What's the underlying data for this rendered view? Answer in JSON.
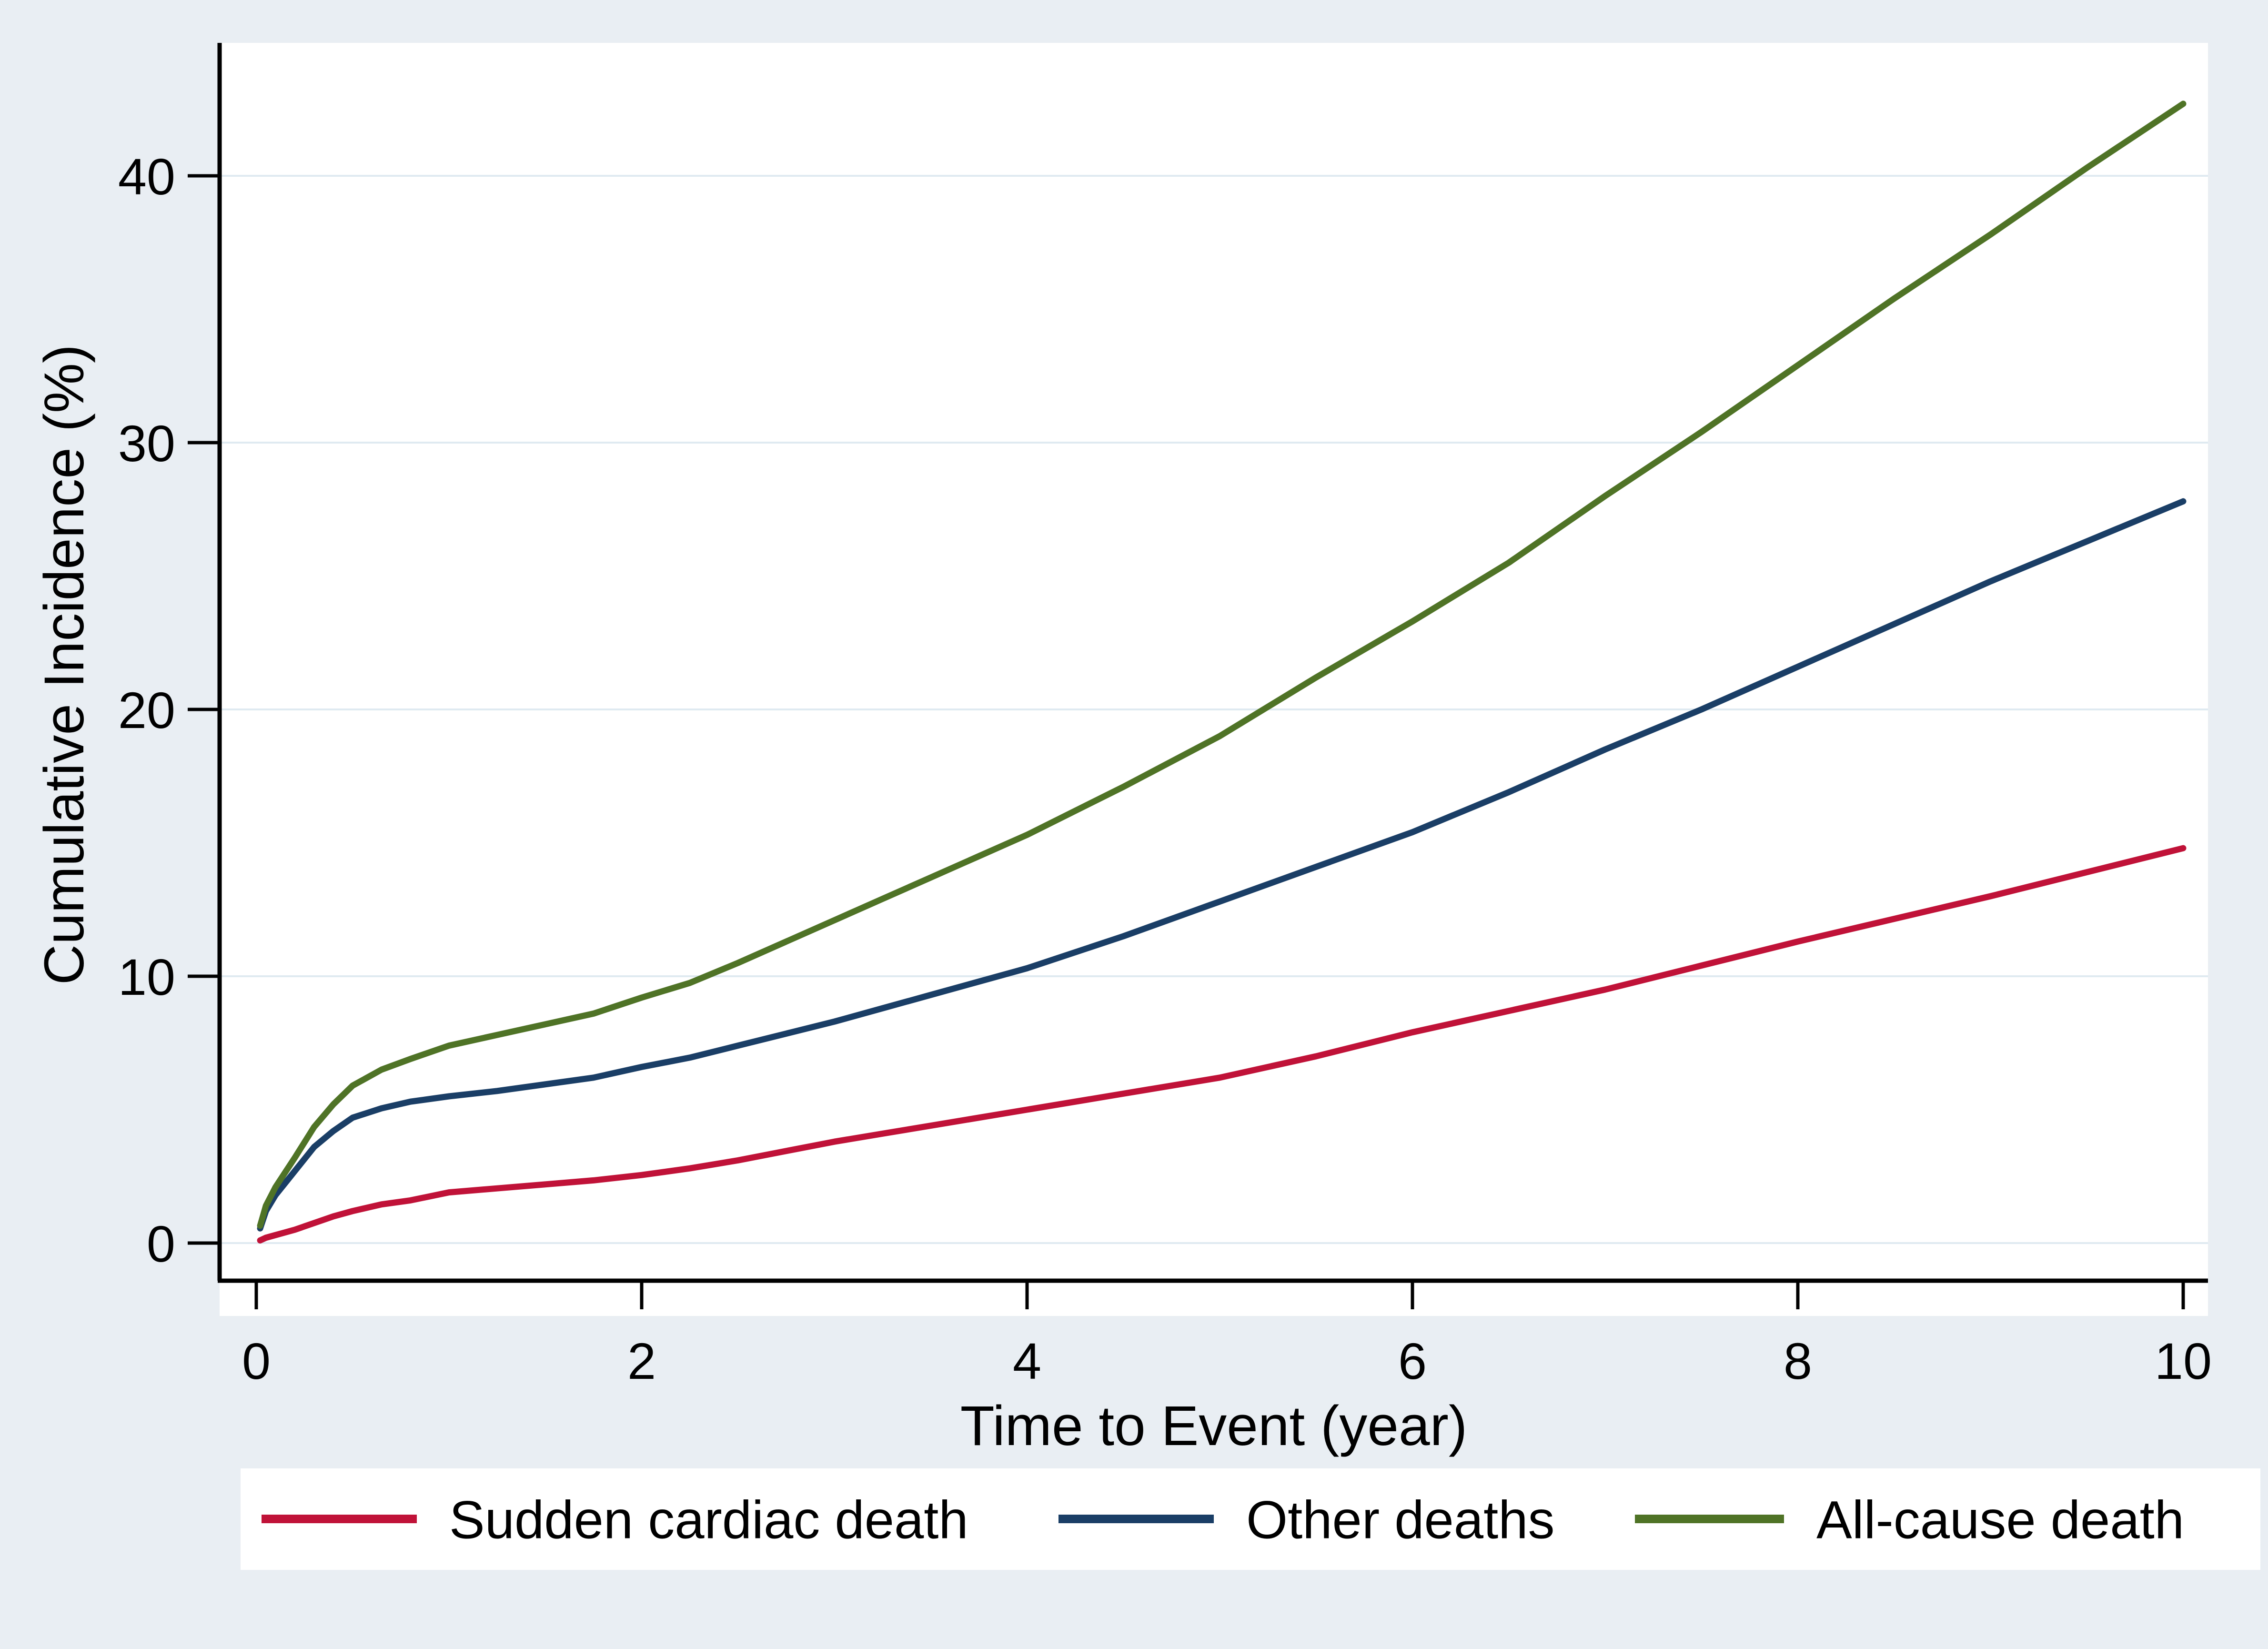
{
  "page": {
    "background_color": "#e9eef3",
    "plot_background_color": "#ffffff",
    "gridline_color": "#dfeaf1",
    "axis_color": "#000000",
    "legend_background_color": "#ffffff"
  },
  "chart_data": {
    "type": "line",
    "title": "",
    "xlabel": "Time to Event (year)",
    "ylabel": "Cumulative Incidence (%)",
    "xlim": [
      0,
      10.13
    ],
    "ylim": [
      0,
      45
    ],
    "x_ticks": [
      0,
      2,
      4,
      6,
      8,
      10
    ],
    "y_ticks": [
      0,
      10,
      20,
      30,
      40
    ],
    "grid": true,
    "legend_position": "bottom",
    "curve_style": "cumulative-incidence step curves",
    "x": [
      0.02,
      0.05,
      0.1,
      0.15,
      0.2,
      0.3,
      0.4,
      0.5,
      0.65,
      0.8,
      1,
      1.25,
      1.5,
      1.75,
      2,
      2.25,
      2.5,
      2.75,
      3,
      3.25,
      3.5,
      3.75,
      4,
      4.5,
      5,
      5.5,
      6,
      6.5,
      7,
      7.5,
      8,
      8.5,
      9,
      9.5,
      10
    ],
    "series": [
      {
        "name": "Sudden cardiac death",
        "color": "#c01238",
        "values": [
          0.1,
          0.2,
          0.3,
          0.4,
          0.5,
          0.75,
          1.0,
          1.2,
          1.45,
          1.6,
          1.9,
          2.05,
          2.2,
          2.35,
          2.55,
          2.8,
          3.1,
          3.45,
          3.8,
          4.1,
          4.4,
          4.7,
          5.0,
          5.6,
          6.2,
          7.0,
          7.9,
          8.7,
          9.5,
          10.4,
          11.3,
          12.15,
          13.0,
          13.9,
          14.8
        ]
      },
      {
        "name": "Other deaths",
        "color": "#1a3e66",
        "values": [
          0.55,
          1.2,
          1.8,
          2.25,
          2.7,
          3.6,
          4.2,
          4.7,
          5.05,
          5.3,
          5.5,
          5.7,
          5.95,
          6.2,
          6.6,
          6.95,
          7.4,
          7.85,
          8.3,
          8.8,
          9.3,
          9.8,
          10.3,
          11.5,
          12.8,
          14.1,
          15.4,
          16.9,
          18.5,
          20.0,
          21.6,
          23.2,
          24.8,
          26.3,
          27.8
        ]
      },
      {
        "name": "All-cause death",
        "color": "#4f7326",
        "values": [
          0.65,
          1.4,
          2.1,
          2.65,
          3.2,
          4.35,
          5.2,
          5.9,
          6.5,
          6.9,
          7.4,
          7.8,
          8.2,
          8.6,
          9.2,
          9.75,
          10.5,
          11.3,
          12.1,
          12.9,
          13.7,
          14.5,
          15.3,
          17.1,
          19.0,
          21.2,
          23.3,
          25.5,
          28.0,
          30.4,
          32.9,
          35.4,
          37.8,
          40.3,
          42.7
        ]
      }
    ]
  }
}
